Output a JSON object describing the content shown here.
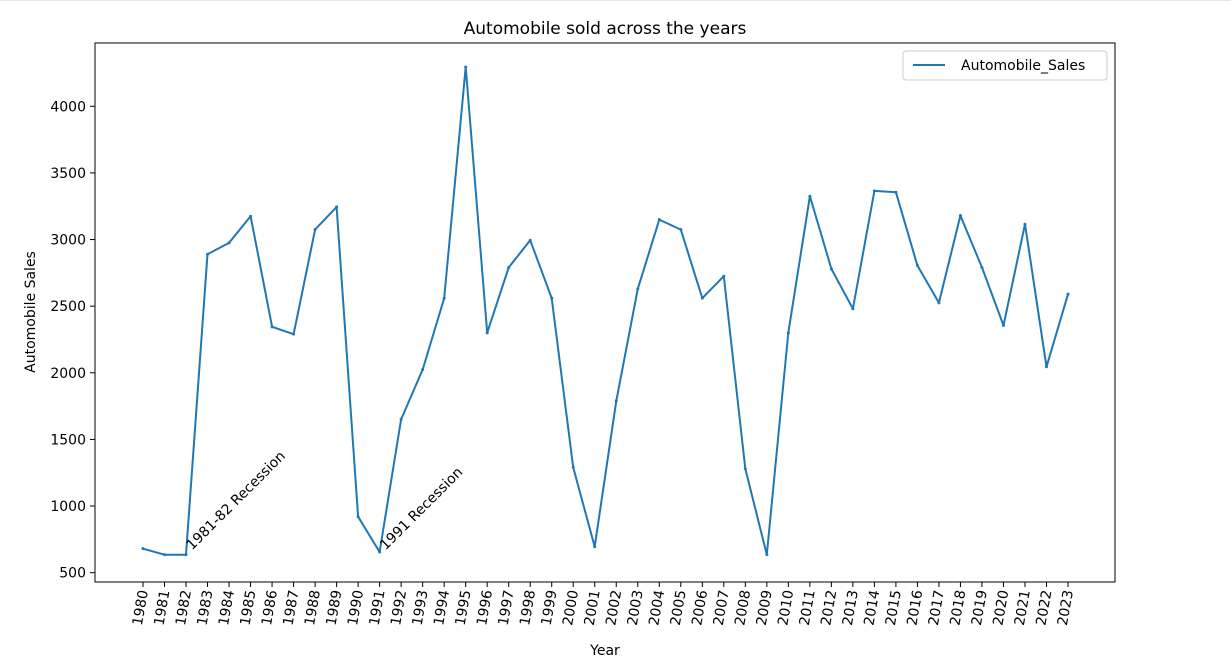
{
  "chart_data": {
    "type": "line",
    "title": "Automobile sold across the years",
    "xlabel": "Year",
    "ylabel": "Automobile Sales",
    "x": [
      1980,
      1981,
      1982,
      1983,
      1984,
      1985,
      1986,
      1987,
      1988,
      1989,
      1990,
      1991,
      1992,
      1993,
      1994,
      1995,
      1996,
      1997,
      1998,
      1999,
      2000,
      2001,
      2002,
      2003,
      2004,
      2005,
      2006,
      2007,
      2008,
      2009,
      2010,
      2011,
      2012,
      2013,
      2014,
      2015,
      2016,
      2017,
      2018,
      2019,
      2020,
      2021,
      2022,
      2023
    ],
    "series": [
      {
        "name": "Automobile_Sales",
        "color": "#1f77b4",
        "values": [
          680,
          635,
          635,
          2890,
          2975,
          3175,
          2345,
          2290,
          3075,
          3245,
          920,
          655,
          1650,
          2025,
          2560,
          4295,
          2300,
          2790,
          2995,
          2560,
          1290,
          695,
          1790,
          2630,
          3150,
          3075,
          2560,
          2725,
          1280,
          635,
          2300,
          3325,
          2780,
          2480,
          3365,
          3355,
          2805,
          2525,
          3180,
          2790,
          2355,
          3115,
          2045,
          2590
        ]
      }
    ],
    "ylim": [
      430,
      4475
    ],
    "yticks": [
      500,
      1000,
      1500,
      2000,
      2500,
      3000,
      3500,
      4000
    ],
    "grid": false,
    "legend_position": "top-right",
    "annotations": [
      {
        "text": "1981-82 Recession",
        "x": 1982,
        "y": 650,
        "rotation": 45
      },
      {
        "text": "1991 Recession",
        "x": 1991,
        "y": 650,
        "rotation": 45
      }
    ]
  }
}
